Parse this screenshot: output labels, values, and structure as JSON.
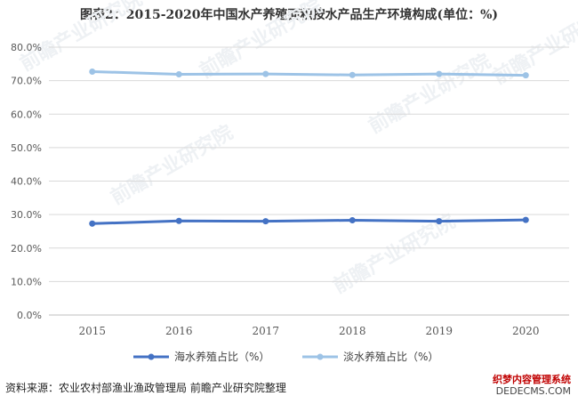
{
  "title": "图表2：2015-2020年中国水产养殖面积按水产品生产环境构成(单位：%)",
  "source": "资料来源：农业农村部渔业渔政管理局 前瞻产业研究院整理",
  "watermark": {
    "repeat_text": "前瞻产业研究院",
    "footer_line1": "织梦内容管理系统",
    "footer_line2": "DEDECMS.COM"
  },
  "colors": {
    "series1": "#4472c4",
    "series2": "#9dc3e6",
    "grid": "#d9d9d9",
    "axis_text": "#595959"
  },
  "chart_data": {
    "type": "line",
    "title": "图表2：2015-2020年中国水产养殖面积按水产品生产环境构成(单位：%)",
    "xlabel": "",
    "ylabel": "",
    "categories": [
      "2015",
      "2016",
      "2017",
      "2018",
      "2019",
      "2020"
    ],
    "y_ticks": [
      "0.0%",
      "10.0%",
      "20.0%",
      "30.0%",
      "40.0%",
      "50.0%",
      "60.0%",
      "70.0%",
      "80.0%"
    ],
    "ylim": [
      0,
      80
    ],
    "grid": true,
    "legend_position": "bottom",
    "series": [
      {
        "name": "海水养殖占比（%）",
        "values": [
          27.3,
          28.1,
          28.0,
          28.3,
          28.0,
          28.4
        ]
      },
      {
        "name": "淡水养殖占比（%）",
        "values": [
          72.7,
          71.9,
          72.0,
          71.7,
          72.0,
          71.6
        ]
      }
    ]
  }
}
